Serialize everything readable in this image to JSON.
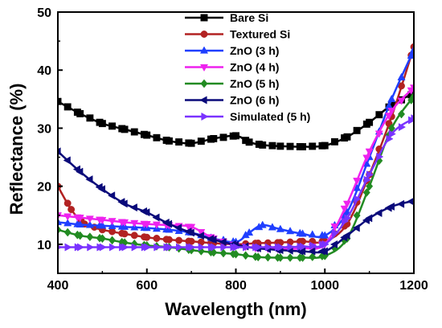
{
  "chart_data": {
    "type": "line",
    "xlabel": "Wavelength (nm)",
    "ylabel": "Reflectance (%)",
    "xlim": [
      400,
      1200
    ],
    "ylim": [
      5,
      50
    ],
    "xticks": [
      400,
      600,
      800,
      1000,
      1200
    ],
    "yticks": [
      10,
      20,
      30,
      40,
      50
    ],
    "grid": false,
    "legend_position": "top-right",
    "series": [
      {
        "name": "Bare Si",
        "color": "#000000",
        "marker": "square",
        "points": [
          [
            400,
            34.6
          ],
          [
            450,
            32.5
          ],
          [
            500,
            30.8
          ],
          [
            550,
            29.8
          ],
          [
            600,
            28.8
          ],
          [
            650,
            27.8
          ],
          [
            700,
            27.4
          ],
          [
            750,
            28.2
          ],
          [
            800,
            28.7
          ],
          [
            830,
            27.6
          ],
          [
            860,
            27.1
          ],
          [
            900,
            26.9
          ],
          [
            950,
            26.8
          ],
          [
            1000,
            27.0
          ],
          [
            1050,
            28.5
          ],
          [
            1100,
            31.0
          ],
          [
            1150,
            34.0
          ],
          [
            1200,
            36.0
          ]
        ]
      },
      {
        "name": "Textured Si",
        "color": "#b22222",
        "marker": "circle",
        "points": [
          [
            400,
            20.0
          ],
          [
            430,
            16.0
          ],
          [
            460,
            13.5
          ],
          [
            500,
            12.5
          ],
          [
            550,
            11.8
          ],
          [
            600,
            11.2
          ],
          [
            650,
            10.8
          ],
          [
            700,
            10.5
          ],
          [
            750,
            10.2
          ],
          [
            800,
            10.0
          ],
          [
            850,
            10.2
          ],
          [
            900,
            10.3
          ],
          [
            950,
            10.5
          ],
          [
            1000,
            10.5
          ],
          [
            1050,
            13.5
          ],
          [
            1100,
            22.0
          ],
          [
            1150,
            32.0
          ],
          [
            1200,
            44.0
          ]
        ]
      },
      {
        "name": "ZnO (3 h)",
        "color": "#1f3fff",
        "marker": "triangle-up",
        "points": [
          [
            400,
            13.8
          ],
          [
            450,
            13.4
          ],
          [
            500,
            13.2
          ],
          [
            550,
            13.0
          ],
          [
            600,
            12.8
          ],
          [
            650,
            12.5
          ],
          [
            700,
            12.0
          ],
          [
            750,
            11.0
          ],
          [
            800,
            10.4
          ],
          [
            830,
            12.0
          ],
          [
            860,
            13.3
          ],
          [
            900,
            12.6
          ],
          [
            950,
            11.8
          ],
          [
            1000,
            11.5
          ],
          [
            1050,
            15.5
          ],
          [
            1100,
            25.0
          ],
          [
            1150,
            35.0
          ],
          [
            1200,
            43.5
          ]
        ]
      },
      {
        "name": "ZnO (4 h)",
        "color": "#ee22ee",
        "marker": "triangle-down",
        "points": [
          [
            400,
            15.0
          ],
          [
            450,
            14.6
          ],
          [
            500,
            14.2
          ],
          [
            550,
            13.8
          ],
          [
            600,
            13.5
          ],
          [
            650,
            13.3
          ],
          [
            700,
            13.0
          ],
          [
            750,
            11.0
          ],
          [
            800,
            9.8
          ],
          [
            850,
            9.3
          ],
          [
            900,
            9.2
          ],
          [
            950,
            9.3
          ],
          [
            1000,
            10.0
          ],
          [
            1050,
            17.0
          ],
          [
            1100,
            26.0
          ],
          [
            1150,
            33.0
          ],
          [
            1200,
            37.0
          ]
        ]
      },
      {
        "name": "ZnO (5 h)",
        "color": "#228b22",
        "marker": "diamond",
        "points": [
          [
            400,
            12.5
          ],
          [
            450,
            11.5
          ],
          [
            500,
            11.0
          ],
          [
            550,
            10.3
          ],
          [
            600,
            9.8
          ],
          [
            650,
            9.5
          ],
          [
            700,
            9.0
          ],
          [
            750,
            8.6
          ],
          [
            800,
            8.3
          ],
          [
            850,
            7.8
          ],
          [
            900,
            7.7
          ],
          [
            950,
            7.7
          ],
          [
            1000,
            8.0
          ],
          [
            1050,
            11.0
          ],
          [
            1100,
            20.0
          ],
          [
            1150,
            30.0
          ],
          [
            1200,
            35.5
          ]
        ]
      },
      {
        "name": "ZnO (6 h)",
        "color": "#0a0a7a",
        "marker": "triangle-left",
        "points": [
          [
            400,
            26.0
          ],
          [
            450,
            22.5
          ],
          [
            500,
            19.5
          ],
          [
            550,
            17.0
          ],
          [
            600,
            15.5
          ],
          [
            650,
            13.5
          ],
          [
            700,
            12.0
          ],
          [
            750,
            10.8
          ],
          [
            800,
            9.9
          ],
          [
            850,
            9.3
          ],
          [
            900,
            9.0
          ],
          [
            950,
            8.8
          ],
          [
            1000,
            8.8
          ],
          [
            1050,
            11.5
          ],
          [
            1100,
            14.5
          ],
          [
            1150,
            16.5
          ],
          [
            1200,
            17.5
          ]
        ]
      },
      {
        "name": "Simulated (5 h)",
        "color": "#7a33ff",
        "marker": "triangle-right",
        "points": [
          [
            400,
            9.5
          ],
          [
            450,
            9.5
          ],
          [
            500,
            9.5
          ],
          [
            550,
            9.5
          ],
          [
            600,
            9.5
          ],
          [
            650,
            9.5
          ],
          [
            700,
            9.5
          ],
          [
            750,
            9.5
          ],
          [
            800,
            9.5
          ],
          [
            850,
            9.5
          ],
          [
            900,
            9.5
          ],
          [
            950,
            9.6
          ],
          [
            1000,
            10.0
          ],
          [
            1050,
            14.5
          ],
          [
            1100,
            22.0
          ],
          [
            1150,
            29.0
          ],
          [
            1200,
            31.7
          ]
        ]
      }
    ]
  }
}
